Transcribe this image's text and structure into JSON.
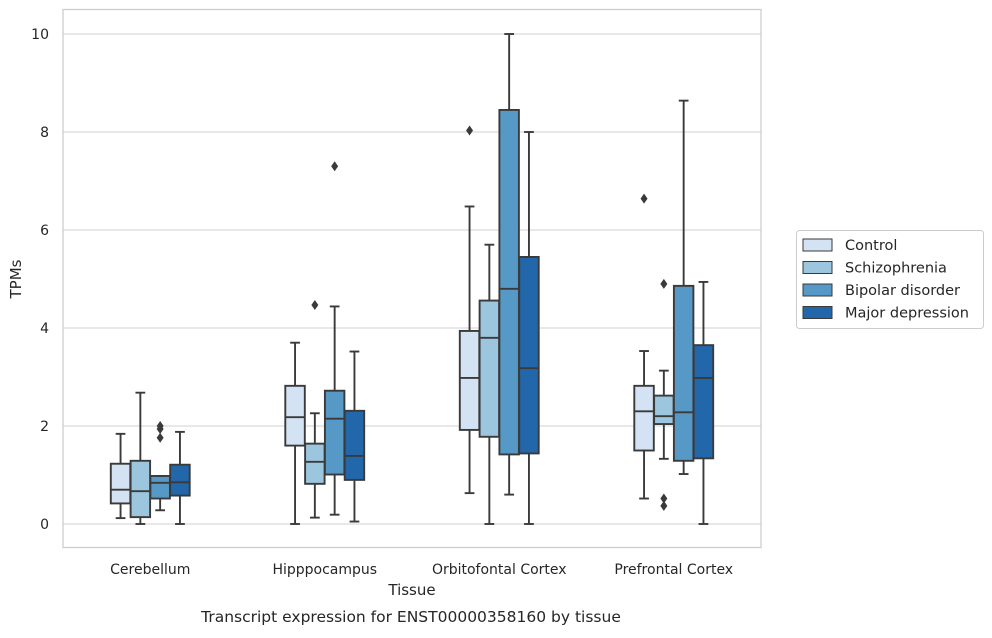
{
  "chart_data": {
    "type": "box",
    "title": "",
    "caption": "Transcript expression for ENST00000358160 by tissue",
    "xlabel": "Tissue",
    "ylabel": "TPMs",
    "ylim": [
      -0.45,
      10.5
    ],
    "yticks": [
      0,
      2,
      4,
      6,
      8,
      10
    ],
    "grid": "horizontal",
    "legend_position": "right",
    "categories": [
      "Cerebellum",
      "Hipppocampus",
      "Orbitofontal Cortex",
      "Prefrontal Cortex"
    ],
    "series": [
      {
        "name": "Control",
        "color": "#d4e3f3",
        "boxes": [
          {
            "whislo": 0.12,
            "q1": 0.42,
            "med": 0.7,
            "q3": 1.23,
            "whishi": 1.84,
            "fliers": []
          },
          {
            "whislo": 0.0,
            "q1": 1.6,
            "med": 2.18,
            "q3": 2.82,
            "whishi": 3.7,
            "fliers": []
          },
          {
            "whislo": 0.63,
            "q1": 1.92,
            "med": 2.98,
            "q3": 3.94,
            "whishi": 6.48,
            "fliers": [
              8.03
            ]
          },
          {
            "whislo": 0.52,
            "q1": 1.5,
            "med": 2.3,
            "q3": 2.82,
            "whishi": 3.53,
            "fliers": [
              6.64
            ]
          }
        ]
      },
      {
        "name": "Schizophrenia",
        "color": "#9cc6de",
        "boxes": [
          {
            "whislo": 0.0,
            "q1": 0.14,
            "med": 0.67,
            "q3": 1.29,
            "whishi": 2.68,
            "fliers": []
          },
          {
            "whislo": 0.13,
            "q1": 0.82,
            "med": 1.27,
            "q3": 1.64,
            "whishi": 2.26,
            "fliers": [
              4.47
            ]
          },
          {
            "whislo": 0.0,
            "q1": 1.78,
            "med": 3.8,
            "q3": 4.56,
            "whishi": 5.7,
            "fliers": []
          },
          {
            "whislo": 1.33,
            "q1": 2.04,
            "med": 2.2,
            "q3": 2.62,
            "whishi": 3.13,
            "fliers": [
              4.9,
              0.52,
              0.37
            ]
          }
        ]
      },
      {
        "name": "Bipolar disorder",
        "color": "#5799c6",
        "boxes": [
          {
            "whislo": 0.28,
            "q1": 0.52,
            "med": 0.84,
            "q3": 0.98,
            "whishi": 0.98,
            "fliers": [
              2.0,
              1.94,
              1.76
            ]
          },
          {
            "whislo": 0.19,
            "q1": 1.01,
            "med": 2.15,
            "q3": 2.72,
            "whishi": 4.44,
            "fliers": [
              7.3
            ]
          },
          {
            "whislo": 0.6,
            "q1": 1.42,
            "med": 4.8,
            "q3": 8.45,
            "whishi": 10.0,
            "fliers": []
          },
          {
            "whislo": 1.02,
            "q1": 1.29,
            "med": 2.28,
            "q3": 4.86,
            "whishi": 8.64,
            "fliers": []
          }
        ]
      },
      {
        "name": "Major depression",
        "color": "#2367ab",
        "boxes": [
          {
            "whislo": 0.0,
            "q1": 0.58,
            "med": 0.85,
            "q3": 1.21,
            "whishi": 1.88,
            "fliers": []
          },
          {
            "whislo": 0.05,
            "q1": 0.9,
            "med": 1.39,
            "q3": 2.31,
            "whishi": 3.52,
            "fliers": []
          },
          {
            "whislo": 0.0,
            "q1": 1.44,
            "med": 3.18,
            "q3": 5.45,
            "whishi": 8.0,
            "fliers": []
          },
          {
            "whislo": 0.0,
            "q1": 1.34,
            "med": 2.98,
            "q3": 3.65,
            "whishi": 4.94,
            "fliers": []
          }
        ]
      }
    ]
  }
}
